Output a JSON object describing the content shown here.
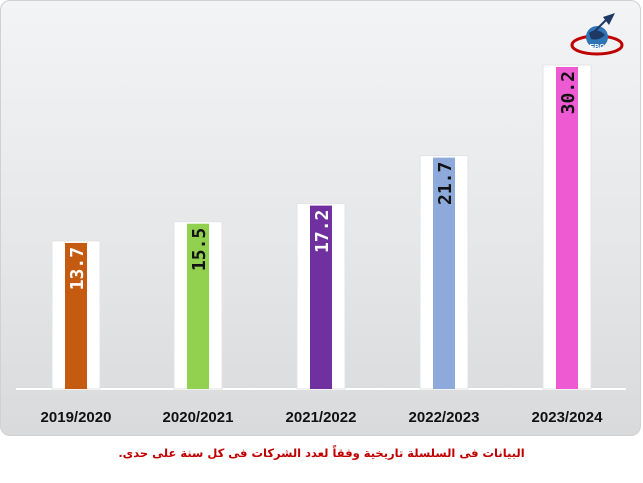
{
  "chart_data": {
    "type": "bar",
    "categories": [
      "2019/2020",
      "2020/2021",
      "2021/2022",
      "2022/2023",
      "2023/2024"
    ],
    "values": [
      13.7,
      15.5,
      17.2,
      21.7,
      30.2
    ],
    "data_labels": [
      "13.7",
      "15.5",
      "17.2",
      "21.7",
      "30.2"
    ],
    "bar_colors": [
      "#c55a11",
      "#92d050",
      "#7030a0",
      "#8eaadb",
      "#ee5ad2"
    ],
    "label_colors": [
      "#ffffff",
      "#111111",
      "#ffffff",
      "#111111",
      "#111111"
    ],
    "ylim": [
      0,
      31
    ],
    "grid": false,
    "legend": "none"
  },
  "footnote": "البيانات فى السلسلة تاريخية وفقاً لعدد الشركات فى كل سنة على حدى.",
  "logo": {
    "text": "EBC",
    "colors": [
      "#c00000",
      "#1f3864",
      "#2e75b6"
    ]
  }
}
